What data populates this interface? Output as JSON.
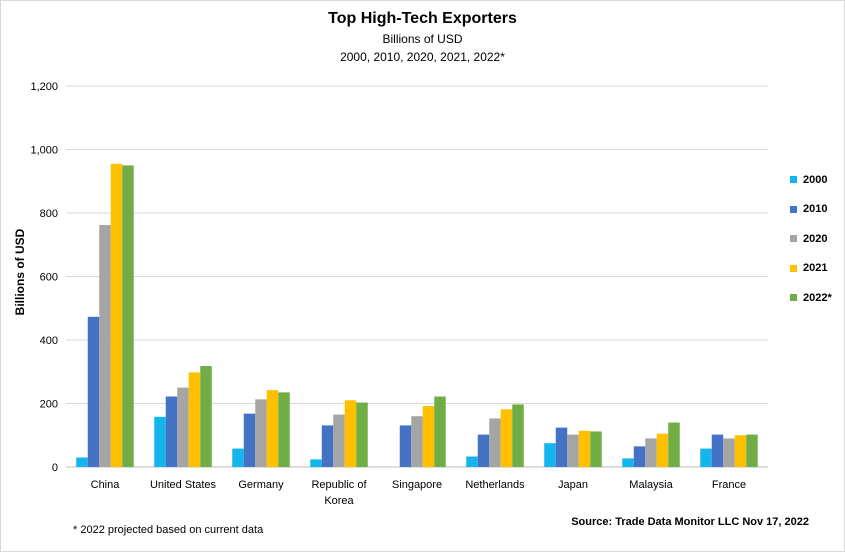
{
  "chart_data": {
    "type": "bar",
    "title": "Top High-Tech Exporters",
    "subtitle": "Billions of USD",
    "subtitle2": "2000, 2010, 2020, 2021, 2022*",
    "ylabel": "Billions of USD",
    "xlabel": "",
    "ylim": [
      0,
      1200
    ],
    "yticks": [
      "0",
      "200",
      "400",
      "600",
      "800",
      "1,000",
      "1,200"
    ],
    "grid": true,
    "legend_position": "right",
    "categories": [
      "China",
      "United States",
      "Germany",
      "Republic of Korea",
      "Singapore",
      "Netherlands",
      "Japan",
      "Malaysia",
      "France"
    ],
    "category_lines": [
      [
        "China"
      ],
      [
        "United States"
      ],
      [
        "Germany"
      ],
      [
        "Republic of",
        "Korea"
      ],
      [
        "Singapore"
      ],
      [
        "Netherlands"
      ],
      [
        "Japan"
      ],
      [
        "Malaysia"
      ],
      [
        "France"
      ]
    ],
    "series": [
      {
        "name": "2000",
        "color": "#14B4EC",
        "values": [
          30,
          158,
          58,
          24,
          0,
          33,
          75,
          27,
          58
        ]
      },
      {
        "name": "2010",
        "color": "#4472C4",
        "values": [
          473,
          222,
          168,
          131,
          131,
          102,
          124,
          65,
          102
        ]
      },
      {
        "name": "2020",
        "color": "#A5A5A5",
        "values": [
          762,
          250,
          213,
          165,
          160,
          153,
          102,
          90,
          90
        ]
      },
      {
        "name": "2021",
        "color": "#FFC000",
        "values": [
          955,
          298,
          242,
          210,
          192,
          182,
          114,
          105,
          100
        ]
      },
      {
        "name": "2022*",
        "color": "#70AD47",
        "values": [
          950,
          318,
          235,
          203,
          222,
          197,
          112,
          140,
          102
        ]
      }
    ]
  },
  "footnote": "* 2022 projected based on current data",
  "source": "Source: Trade Data Monitor LLC Nov 17, 2022"
}
